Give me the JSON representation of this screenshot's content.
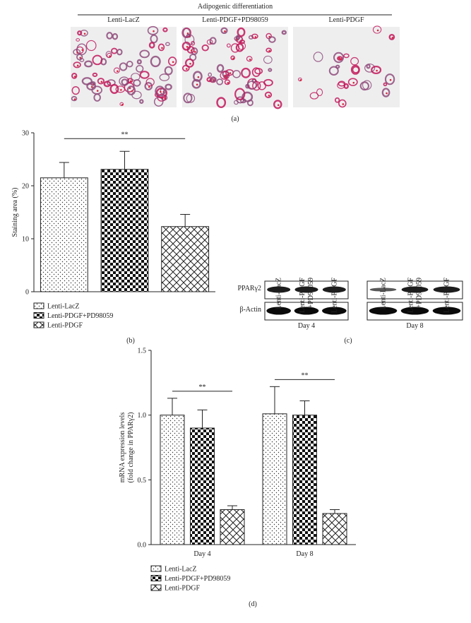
{
  "panel_a": {
    "header": "Adipogenic differentiation",
    "labels": [
      "Lenti-LacZ",
      "Lenti-PDGF+PD98059",
      "Lenti-PDGF"
    ],
    "caption": "(a)"
  },
  "panel_c": {
    "days": [
      {
        "label": "Day 4",
        "lanes": [
          [
            "Lenti-LacZ"
          ],
          [
            "Lenti-PDGF",
            "+PD98059"
          ],
          [
            "Lenti-PDGF"
          ]
        ]
      },
      {
        "label": "Day 8",
        "lanes": [
          [
            "Lenti-LacZ"
          ],
          [
            "Lenti-PDGF",
            "+PD98059"
          ],
          [
            "Lenti-PDGF"
          ]
        ]
      }
    ],
    "rows": [
      "PPARγ2",
      "β-Actin"
    ],
    "caption": "(c)"
  },
  "chart_data": [
    {
      "type": "bar",
      "y_label": [
        "Staining area (%)"
      ],
      "ylim": [
        0,
        30
      ],
      "yticks": [
        0,
        10,
        20,
        30
      ],
      "series": [
        {
          "name": "Lenti-LacZ",
          "pattern": "dots",
          "values": [
            21.5
          ],
          "errors": [
            2.9
          ]
        },
        {
          "name": "Lenti-PDGF+PD98059",
          "pattern": "checker",
          "values": [
            23.1
          ],
          "errors": [
            3.4
          ]
        },
        {
          "name": "Lenti-PDGF",
          "pattern": "lattice",
          "values": [
            12.3
          ],
          "errors": [
            2.3
          ]
        }
      ],
      "annotations": [
        "**"
      ],
      "caption": "(b)"
    },
    {
      "type": "bar",
      "y_label": [
        "mRNA expression levels",
        "(fold change in PPARγ2)"
      ],
      "categories": [
        "Day 4",
        "Day 8"
      ],
      "ylim": [
        0,
        1.5
      ],
      "yticks": [
        {
          "value": 0,
          "label": "0.0"
        },
        {
          "value": 0.5,
          "label": "0.5"
        },
        {
          "value": 1,
          "label": "1.0"
        },
        {
          "value": 1.5,
          "label": "1.5"
        }
      ],
      "series": [
        {
          "name": "Lenti-LacZ",
          "pattern": "dots",
          "values": [
            1.0,
            1.01
          ],
          "errors": [
            0.13,
            0.21
          ]
        },
        {
          "name": "Lenti-PDGF+PD98059",
          "pattern": "checker",
          "values": [
            0.9,
            1.0
          ],
          "errors": [
            0.14,
            0.11
          ]
        },
        {
          "name": "Lenti-PDGF",
          "pattern": "lattice",
          "values": [
            0.27,
            0.24
          ],
          "errors": [
            0.03,
            0.03
          ]
        }
      ],
      "annotations": [
        "**",
        "**"
      ],
      "caption": "(d)"
    }
  ]
}
